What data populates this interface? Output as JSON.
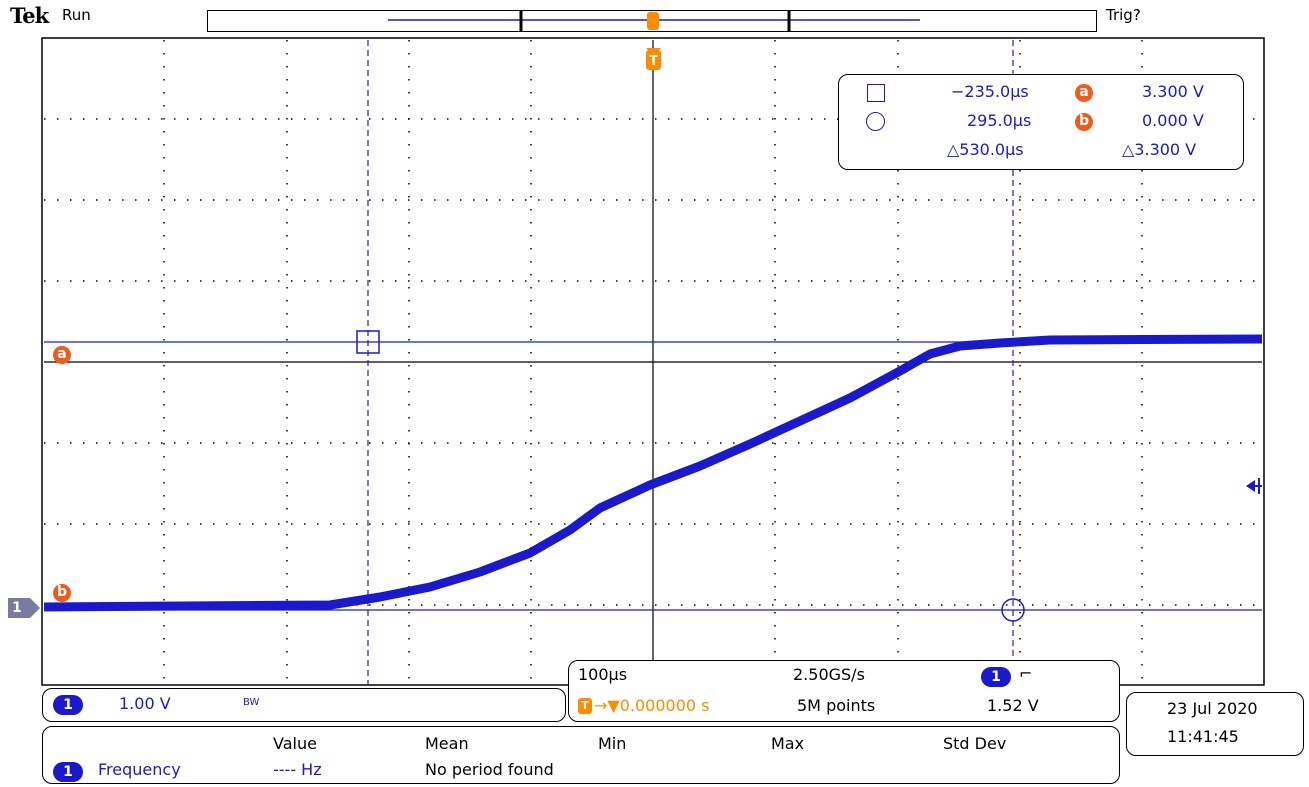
{
  "header": {
    "brand": "Tek",
    "acq_state": "Run",
    "trigger_status": "Trig?"
  },
  "cursor_readout": {
    "cursor_a_time": "−235.0µs",
    "cursor_b_time": "295.0µs",
    "delta_time": "△530.0µs",
    "cursor_a_level": "3.300 V",
    "cursor_b_level": "0.000 V",
    "delta_level": "△3.300 V",
    "badge_a": "a",
    "badge_b": "b"
  },
  "markers": {
    "ref_a": "a",
    "ref_b": "b",
    "channel": "1",
    "trigger": "T"
  },
  "channel_info": {
    "channel": "1",
    "scale": "1.00 V",
    "bandwidth": "BW"
  },
  "timebase": {
    "horizontal_scale": "100µs",
    "sample_rate": "2.50GS/s",
    "record_length": "5M points",
    "trigger_position": "→▼0.000000 s",
    "trigger_channel": "1",
    "trigger_slope": "⌐",
    "trigger_level": "1.52 V"
  },
  "datetime": {
    "date": "23 Jul  2020",
    "time": "11:41:45"
  },
  "measurements": {
    "headers": [
      "Value",
      "Mean",
      "Min",
      "Max",
      "Std Dev"
    ],
    "row": {
      "channel": "1",
      "name": "Frequency",
      "value": "---- Hz",
      "status": "No period found"
    }
  },
  "colors": {
    "waveform": "#1a1acc",
    "trigger": "#ff8c00",
    "cursor_badge": "#f05a1a",
    "graticule": "#000000"
  }
}
